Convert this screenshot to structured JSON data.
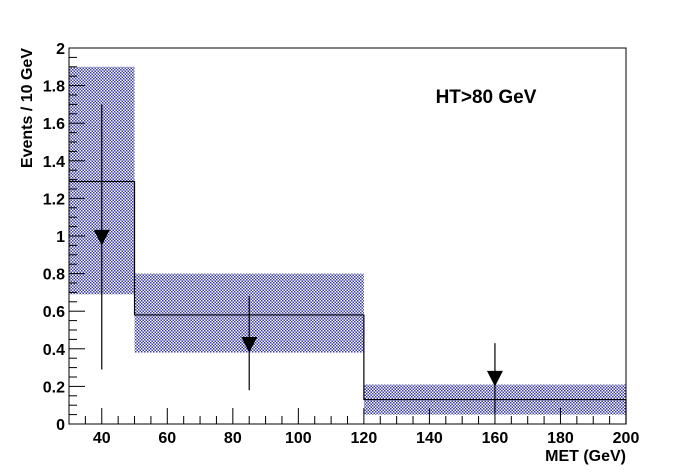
{
  "chart_data": {
    "type": "histogram",
    "title": "",
    "annotation": "HT>80 GeV",
    "xlabel": "MET (GeV)",
    "ylabel": "Events / 10 GeV",
    "xlim": [
      30,
      200
    ],
    "ylim": [
      0,
      2
    ],
    "x_ticks": [
      40,
      60,
      80,
      100,
      120,
      140,
      160,
      180,
      200
    ],
    "y_ticks": [
      0,
      0.2,
      0.4,
      0.6,
      0.8,
      1,
      1.2,
      1.4,
      1.6,
      1.8,
      2
    ],
    "x_tick_labels": [
      "40",
      "60",
      "80",
      "100",
      "120",
      "140",
      "160",
      "180",
      "200"
    ],
    "y_tick_labels": [
      "0",
      "0.2",
      "0.4",
      "0.6",
      "0.8",
      "1",
      "1.2",
      "1.4",
      "1.6",
      "1.8",
      "2"
    ],
    "grid": false,
    "series": [
      {
        "type": "step",
        "bins": [
          {
            "xlow": 30,
            "xhigh": 50,
            "value": 1.29,
            "band_low": 0.69,
            "band_high": 1.9
          },
          {
            "xlow": 50,
            "xhigh": 120,
            "value": 0.58,
            "band_low": 0.38,
            "band_high": 0.8
          },
          {
            "xlow": 120,
            "xhigh": 200,
            "value": 0.13,
            "band_low": 0.05,
            "band_high": 0.21
          }
        ],
        "band_color": "#3a3aa8",
        "line_color": "#000000"
      },
      {
        "type": "upper-limit-points",
        "points": [
          {
            "x": 40,
            "y": 0.99,
            "err_low": 0.29,
            "err_high": 1.7
          },
          {
            "x": 85,
            "y": 0.42,
            "err_low": 0.18,
            "err_high": 0.68
          },
          {
            "x": 160,
            "y": 0.24,
            "err_low": 0.06,
            "err_high": 0.43
          }
        ],
        "marker": "down-triangle",
        "color": "#000000"
      }
    ]
  }
}
